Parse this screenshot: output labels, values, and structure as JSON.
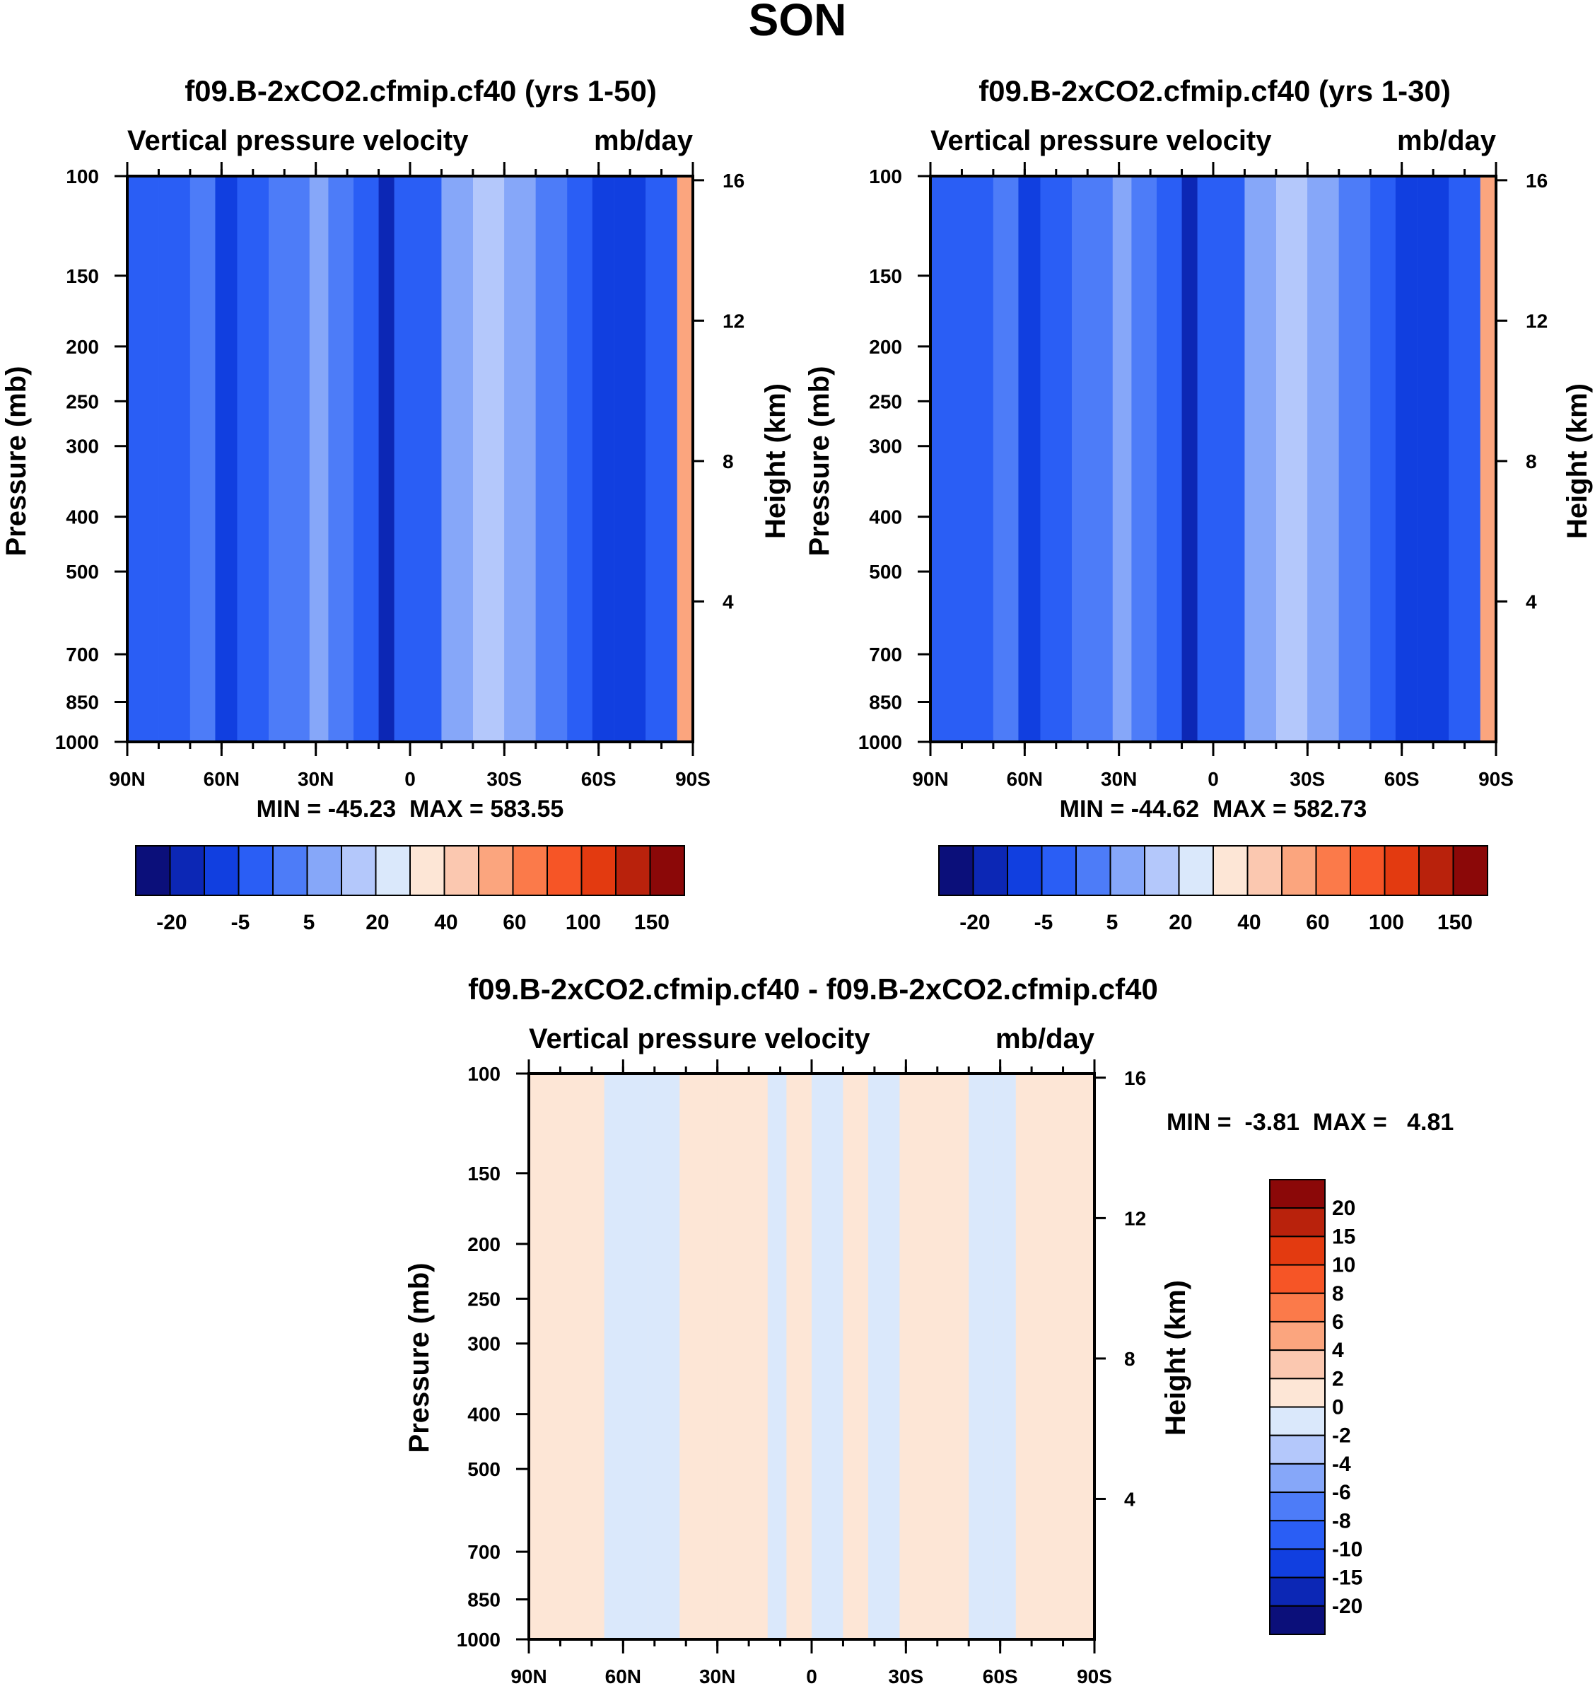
{
  "figure": {
    "title": "SON"
  },
  "panels": [
    {
      "id": "left",
      "title": "f09.B-2xCO2.cfmip.cf40 (yrs 1-50)",
      "subtitle_left": "Vertical pressure velocity",
      "subtitle_right": "mb/day",
      "ylabel": "Pressure (mb)",
      "y2label": "Height (km)",
      "stats": "MIN = -45.23  MAX = 583.55"
    },
    {
      "id": "right",
      "title": "f09.B-2xCO2.cfmip.cf40 (yrs 1-30)",
      "subtitle_left": "Vertical pressure velocity",
      "subtitle_right": "mb/day",
      "ylabel": "Pressure (mb)",
      "y2label": "Height (km)",
      "stats": "MIN = -44.62  MAX = 582.73"
    },
    {
      "id": "diff",
      "title": "f09.B-2xCO2.cfmip.cf40 - f09.B-2xCO2.cfmip.cf40",
      "subtitle_left": "Vertical pressure velocity",
      "subtitle_right": "mb/day",
      "ylabel": "Pressure (mb)",
      "y2label": "Height (km)",
      "stats": "MIN =  -3.81  MAX =   4.81"
    }
  ],
  "chart_data": [
    {
      "type": "heatmap",
      "panel": "left",
      "title": "f09.B-2xCO2.cfmip.cf40 (yrs 1-50)",
      "xlabel": "",
      "ylabel": "Pressure (mb)",
      "y2label": "Height (km)",
      "x_ticks": [
        "90N",
        "60N",
        "30N",
        "0",
        "30S",
        "60S",
        "90S"
      ],
      "x_values": [
        90,
        60,
        30,
        0,
        -30,
        -60,
        -90
      ],
      "y_ticks": [
        100,
        150,
        200,
        250,
        300,
        400,
        500,
        700,
        850,
        1000
      ],
      "y_scale": "log",
      "ylim": [
        1000,
        100
      ],
      "y2_ticks": [
        4,
        8,
        12,
        16
      ],
      "min": -45.23,
      "max": 583.55,
      "levels": [
        -20,
        -5,
        5,
        20,
        40,
        60,
        100,
        150
      ],
      "columns": [
        {
          "lat": 90,
          "v": -9
        },
        {
          "lat": 80,
          "v": -8
        },
        {
          "lat": 70,
          "v": -3
        },
        {
          "lat": 62,
          "v": -11
        },
        {
          "lat": 55,
          "v": -8
        },
        {
          "lat": 45,
          "v": -3
        },
        {
          "lat": 32,
          "v": 4
        },
        {
          "lat": 26,
          "v": -3
        },
        {
          "lat": 18,
          "v": -7
        },
        {
          "lat": 10,
          "v": -21
        },
        {
          "lat": 5,
          "v": -10
        },
        {
          "lat": 0,
          "v": -6
        },
        {
          "lat": -10,
          "v": 1
        },
        {
          "lat": -20,
          "v": 5
        },
        {
          "lat": -30,
          "v": 3
        },
        {
          "lat": -40,
          "v": -2
        },
        {
          "lat": -50,
          "v": -6
        },
        {
          "lat": -58,
          "v": -16
        },
        {
          "lat": -65,
          "v": -11
        },
        {
          "lat": -75,
          "v": -6
        },
        {
          "lat": -85,
          "v": 40
        }
      ]
    },
    {
      "type": "heatmap",
      "panel": "right",
      "title": "f09.B-2xCO2.cfmip.cf40 (yrs 1-30)",
      "xlabel": "",
      "ylabel": "Pressure (mb)",
      "y2label": "Height (km)",
      "x_ticks": [
        "90N",
        "60N",
        "30N",
        "0",
        "30S",
        "60S",
        "90S"
      ],
      "x_values": [
        90,
        60,
        30,
        0,
        -30,
        -60,
        -90
      ],
      "y_ticks": [
        100,
        150,
        200,
        250,
        300,
        400,
        500,
        700,
        850,
        1000
      ],
      "y_scale": "log",
      "ylim": [
        1000,
        100
      ],
      "y2_ticks": [
        4,
        8,
        12,
        16
      ],
      "min": -44.62,
      "max": 582.73,
      "levels": [
        -20,
        -5,
        5,
        20,
        40,
        60,
        100,
        150
      ],
      "columns": [
        {
          "lat": 90,
          "v": -9
        },
        {
          "lat": 80,
          "v": -8
        },
        {
          "lat": 70,
          "v": -3
        },
        {
          "lat": 62,
          "v": -11
        },
        {
          "lat": 55,
          "v": -8
        },
        {
          "lat": 45,
          "v": -3
        },
        {
          "lat": 32,
          "v": 4
        },
        {
          "lat": 26,
          "v": -3
        },
        {
          "lat": 18,
          "v": -7
        },
        {
          "lat": 10,
          "v": -21
        },
        {
          "lat": 5,
          "v": -10
        },
        {
          "lat": 0,
          "v": -6
        },
        {
          "lat": -10,
          "v": 1
        },
        {
          "lat": -20,
          "v": 5
        },
        {
          "lat": -30,
          "v": 3
        },
        {
          "lat": -40,
          "v": -2
        },
        {
          "lat": -50,
          "v": -6
        },
        {
          "lat": -58,
          "v": -16
        },
        {
          "lat": -65,
          "v": -11
        },
        {
          "lat": -75,
          "v": -6
        },
        {
          "lat": -85,
          "v": 40
        }
      ]
    },
    {
      "type": "heatmap",
      "panel": "diff",
      "title": "f09.B-2xCO2.cfmip.cf40 - f09.B-2xCO2.cfmip.cf40",
      "xlabel": "",
      "ylabel": "Pressure (mb)",
      "y2label": "Height (km)",
      "x_ticks": [
        "90N",
        "60N",
        "30N",
        "0",
        "30S",
        "60S",
        "90S"
      ],
      "x_values": [
        90,
        60,
        30,
        0,
        -30,
        -60,
        -90
      ],
      "y_ticks": [
        100,
        150,
        200,
        250,
        300,
        400,
        500,
        700,
        850,
        1000
      ],
      "y_scale": "log",
      "ylim": [
        1000,
        100
      ],
      "y2_ticks": [
        4,
        8,
        12,
        16
      ],
      "min": -3.81,
      "max": 4.81,
      "levels": [
        -20,
        -15,
        -10,
        -8,
        -6,
        -4,
        -2,
        0,
        2,
        4,
        6,
        8,
        10,
        15,
        20
      ],
      "columns": [
        {
          "lat": 90,
          "v": 1
        },
        {
          "lat": 77,
          "v": 1
        },
        {
          "lat": 66,
          "v": -1
        },
        {
          "lat": 52,
          "v": -1
        },
        {
          "lat": 42,
          "v": 1
        },
        {
          "lat": 30,
          "v": 1
        },
        {
          "lat": 22,
          "v": 1
        },
        {
          "lat": 14,
          "v": -1
        },
        {
          "lat": 8,
          "v": 1
        },
        {
          "lat": 0,
          "v": -1
        },
        {
          "lat": -10,
          "v": 1
        },
        {
          "lat": -18,
          "v": -1
        },
        {
          "lat": -28,
          "v": 1
        },
        {
          "lat": -38,
          "v": 1
        },
        {
          "lat": -50,
          "v": -1
        },
        {
          "lat": -58,
          "v": -1
        },
        {
          "lat": -65,
          "v": 1
        },
        {
          "lat": -80,
          "v": 1
        }
      ]
    }
  ],
  "colorbars": {
    "horizontal_labels": [
      "-20",
      "-5",
      "5",
      "20",
      "40",
      "60",
      "100",
      "150"
    ],
    "horizontal_colors": [
      "#0b0f7a",
      "#0c27b5",
      "#113fe0",
      "#2a5ef5",
      "#4d7cf8",
      "#86a7f9",
      "#b4c8fb",
      "#dae8fb",
      "#fde6d6",
      "#fbc8b0",
      "#fba57e",
      "#fb7a4a",
      "#f65526",
      "#e33a10",
      "#b9220c",
      "#8b0808"
    ],
    "vertical_labels": [
      "20",
      "15",
      "10",
      "8",
      "6",
      "4",
      "2",
      "0",
      "-2",
      "-4",
      "-6",
      "-8",
      "-10",
      "-15",
      "-20"
    ],
    "vertical_colors": [
      "#8b0808",
      "#b9220c",
      "#e33a10",
      "#f65526",
      "#fb7a4a",
      "#fba57e",
      "#fbc8b0",
      "#fde6d6",
      "#dae8fb",
      "#b4c8fb",
      "#86a7f9",
      "#4d7cf8",
      "#2a5ef5",
      "#113fe0",
      "#0c27b5",
      "#0b0f7a"
    ]
  }
}
